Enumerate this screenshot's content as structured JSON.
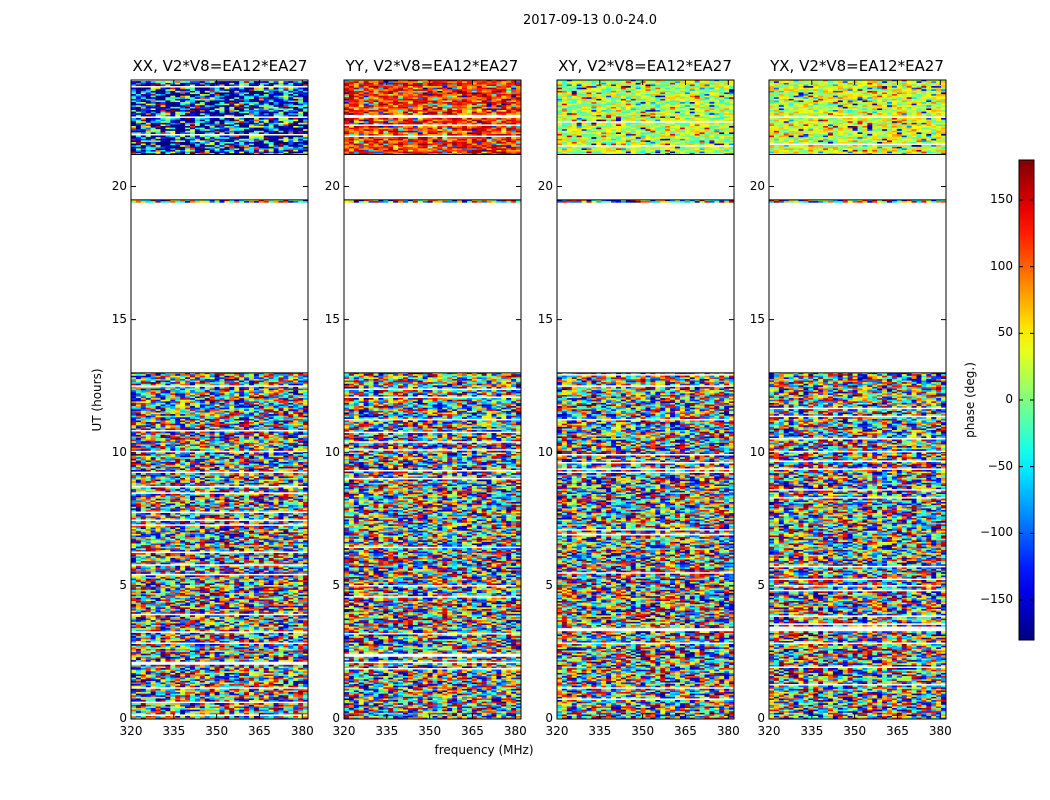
{
  "figure_title": "2017-09-13 0.0-24.0",
  "chart_data": {
    "type": "heatmap",
    "title": "2017-09-13 0.0-24.0",
    "xlabel": "frequency (MHz)",
    "ylabel": "UT (hours)",
    "xlim": [
      320,
      382
    ],
    "ylim": [
      0,
      24
    ],
    "xticks": [
      320,
      335,
      350,
      365,
      380
    ],
    "yticks": [
      0,
      5,
      10,
      15,
      20
    ],
    "panels": [
      {
        "name": "XX",
        "title": "XX, V2*V8=EA12*EA27"
      },
      {
        "name": "YY",
        "title": "YY, V2*V8=EA12*EA27"
      },
      {
        "name": "XY",
        "title": "XY, V2*V8=EA12*EA27"
      },
      {
        "name": "YX",
        "title": "YX, V2*V8=EA12*EA27"
      }
    ],
    "colorbar": {
      "label": "phase (deg.)",
      "range": [
        -180,
        180
      ],
      "ticks": [
        -150,
        -100,
        -50,
        0,
        50,
        100,
        150
      ],
      "colormap": "jet"
    },
    "data_gaps_hours": [
      [
        13.0,
        19.4
      ],
      [
        19.5,
        21.2
      ]
    ],
    "data_segments_hours": [
      [
        0.0,
        13.0
      ],
      [
        19.4,
        19.5
      ],
      [
        21.2,
        24.0
      ]
    ]
  }
}
